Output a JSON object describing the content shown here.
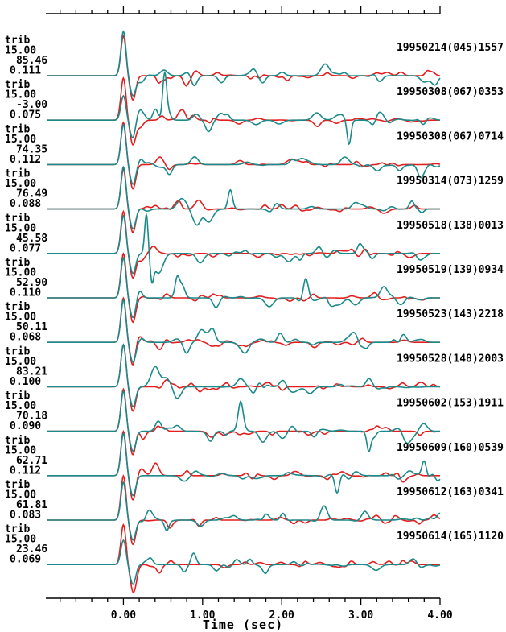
{
  "chart_data": {
    "type": "line",
    "xlabel": "Time (sec)",
    "xlim": [
      -0.98,
      4.0
    ],
    "ticks": [
      "0.00",
      "1.00",
      "2.00",
      "3.00",
      "4.00"
    ],
    "tick_values": [
      0.0,
      1.0,
      2.0,
      3.0,
      4.0
    ],
    "grid": false,
    "series_colors": {
      "observed": "#1a8a8a",
      "synthetic": "#e31e1e"
    },
    "traces": [
      {
        "event": "19950214(045)1557",
        "label": [
          "trib",
          "15.00",
          "85.46",
          "0.111"
        ]
      },
      {
        "event": "19950308(067)0353",
        "label": [
          "trib",
          "15.00",
          "-3.00",
          "0.075"
        ]
      },
      {
        "event": "19950308(067)0714",
        "label": [
          "trib",
          "15.00",
          "74.35",
          "0.112"
        ]
      },
      {
        "event": "19950314(073)1259",
        "label": [
          "trib",
          "15.00",
          "76.49",
          "0.088"
        ]
      },
      {
        "event": "19950518(138)0013",
        "label": [
          "trib",
          "15.00",
          "45.58",
          "0.077"
        ]
      },
      {
        "event": "19950519(139)0934",
        "label": [
          "trib",
          "15.00",
          "52.90",
          "0.110"
        ]
      },
      {
        "event": "19950523(143)2218",
        "label": [
          "trib",
          "15.00",
          "50.11",
          "0.068"
        ]
      },
      {
        "event": "19950528(148)2003",
        "label": [
          "trib",
          "15.00",
          "83.21",
          "0.100"
        ]
      },
      {
        "event": "19950602(153)1911",
        "label": [
          "trib",
          "15.00",
          "70.18",
          "0.090"
        ]
      },
      {
        "event": "19950609(160)0539",
        "label": [
          "trib",
          "15.00",
          "62.71",
          "0.112"
        ]
      },
      {
        "event": "19950612(163)0341",
        "label": [
          "trib",
          "15.00",
          "61.81",
          "0.083"
        ]
      },
      {
        "event": "19950614(165)1120",
        "label": [
          "trib",
          "15.00",
          "23.46",
          "0.069"
        ]
      }
    ]
  }
}
